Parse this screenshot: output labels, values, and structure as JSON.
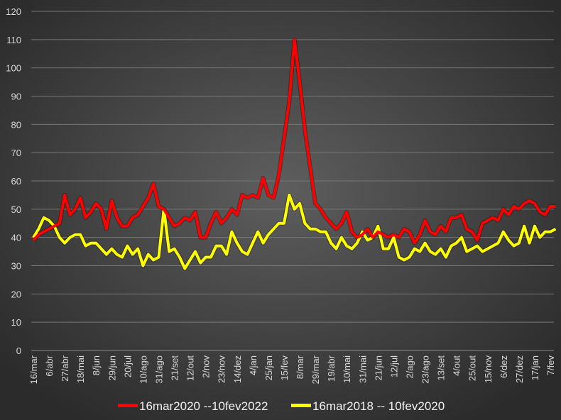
{
  "chart_data": {
    "type": "line",
    "title": "",
    "xlabel": "",
    "ylabel": "",
    "ylim": [
      0,
      120
    ],
    "yticks": [
      "0",
      "10",
      "20",
      "30",
      "40",
      "50",
      "60",
      "70",
      "80",
      "90",
      "100",
      "110",
      "120"
    ],
    "grid": true,
    "legend_position": "bottom",
    "background": "#4a4a4a",
    "x_tick_labels": [
      "16/mar",
      "6/abr",
      "27/abr",
      "18/mai",
      "8/jun",
      "29/jun",
      "20/jul",
      "10/ago",
      "31/ago",
      "21/set",
      "12/out",
      "2/nov",
      "23/nov",
      "14/dez",
      "4/jan",
      "25/jan",
      "15/fev",
      "8/mar",
      "29/mar",
      "19/abr",
      "10/mai",
      "31/mai",
      "21/jun",
      "12/jul",
      "2/ago",
      "23/ago",
      "13/set",
      "4/out",
      "25/out",
      "15/nov",
      "6/dez",
      "27/dez",
      "17/jan",
      "7/fev"
    ],
    "x_step_days": 7,
    "series": [
      {
        "name": "16mar2020 --10fev2022",
        "color": "#ff0000",
        "values": [
          39,
          41,
          42,
          43,
          44,
          45,
          55,
          48,
          50,
          54,
          47,
          49,
          52,
          50,
          43,
          53,
          47,
          44,
          44,
          47,
          48,
          51,
          54,
          59,
          51,
          50,
          47,
          44,
          45,
          47,
          46,
          49,
          40,
          40,
          45,
          49,
          45,
          47,
          50,
          48,
          55,
          54,
          55,
          54,
          61,
          55,
          54,
          62,
          75,
          88,
          110,
          95,
          78,
          65,
          52,
          50,
          47,
          45,
          43,
          45,
          49,
          42,
          40,
          41,
          43,
          40,
          42,
          41,
          40,
          41,
          40,
          43,
          42,
          38,
          41,
          46,
          42,
          41,
          44,
          42,
          47,
          47,
          48,
          43,
          42,
          39,
          45,
          46,
          47,
          46,
          50,
          48,
          51,
          50,
          52,
          53,
          52,
          49,
          48,
          51,
          51
        ]
      },
      {
        "name": "16mar2018 -- 10fev2020",
        "color": "#ffff00",
        "values": [
          40,
          43,
          47,
          46,
          44,
          40,
          38,
          40,
          41,
          41,
          37,
          38,
          38,
          36,
          34,
          36,
          34,
          33,
          37,
          34,
          36,
          30,
          34,
          32,
          33,
          50,
          35,
          36,
          33,
          29,
          32,
          35,
          31,
          33,
          33,
          37,
          37,
          34,
          42,
          38,
          35,
          34,
          38,
          42,
          38,
          41,
          43,
          45,
          45,
          55,
          50,
          52,
          45,
          43,
          43,
          42,
          42,
          38,
          36,
          40,
          37,
          36,
          38,
          42,
          39,
          40,
          44,
          36,
          36,
          40,
          33,
          32,
          33,
          36,
          35,
          38,
          35,
          34,
          36,
          33,
          37,
          38,
          40,
          35,
          36,
          37,
          35,
          36,
          37,
          38,
          42,
          39,
          37,
          38,
          44,
          38,
          44,
          40,
          42,
          42,
          43
        ]
      }
    ]
  }
}
